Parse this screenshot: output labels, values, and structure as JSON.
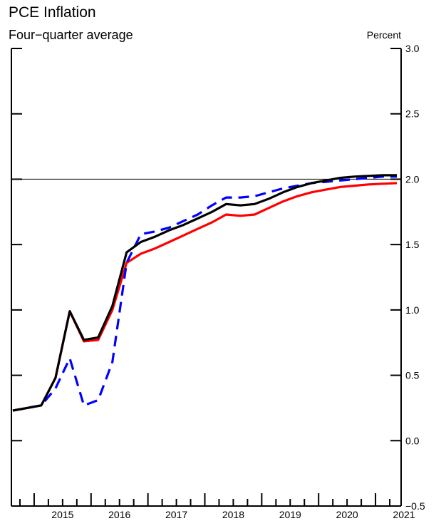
{
  "chart_data": {
    "type": "line",
    "title": "PCE Inflation",
    "subtitle": "Four−quarter average",
    "ylabel": "Percent",
    "xlabel": "",
    "ylim": [
      -0.5,
      3.0
    ],
    "yticks": [
      -0.5,
      0.0,
      0.5,
      1.0,
      1.5,
      2.0,
      2.5,
      3.0
    ],
    "ytick_labels": [
      "−0.5",
      "0.0",
      "0.5",
      "1.0",
      "1.5",
      "2.0",
      "2.5",
      "3.0"
    ],
    "xlim": [
      2014.6,
      2021.45
    ],
    "year_labels": [
      "2015",
      "2016",
      "2017",
      "2018",
      "2019",
      "2020",
      "2021"
    ],
    "reference_line": 2.0,
    "grid": false,
    "series": [
      {
        "color": "#ff0000",
        "dash": "solid",
        "x": [
          2014.625,
          2014.875,
          2015.125,
          2015.375,
          2015.625,
          2015.875,
          2016.125,
          2016.375,
          2016.625,
          2016.875,
          2017.125,
          2017.375,
          2017.625,
          2017.875,
          2018.125,
          2018.375,
          2018.625,
          2018.875,
          2019.125,
          2019.375,
          2019.625,
          2019.875,
          2020.125,
          2020.375,
          2020.625,
          2020.875,
          2021.125,
          2021.375
        ],
        "y": [
          0.23,
          0.25,
          0.27,
          0.48,
          0.99,
          0.76,
          0.77,
          1.0,
          1.36,
          1.43,
          1.47,
          1.52,
          1.57,
          1.62,
          1.67,
          1.73,
          1.72,
          1.73,
          1.78,
          1.83,
          1.87,
          1.9,
          1.92,
          1.94,
          1.95,
          1.96,
          1.965,
          1.97
        ]
      },
      {
        "color": "#0000ff",
        "dash": "dashed",
        "x": [
          2014.625,
          2014.875,
          2015.125,
          2015.375,
          2015.625,
          2015.875,
          2016.125,
          2016.375,
          2016.625,
          2016.875,
          2017.125,
          2017.375,
          2017.625,
          2017.875,
          2018.125,
          2018.375,
          2018.625,
          2018.875,
          2019.125,
          2019.375,
          2019.625,
          2019.875,
          2020.125,
          2020.375,
          2020.625,
          2020.875,
          2021.125,
          2021.375
        ],
        "y": [
          0.23,
          0.25,
          0.27,
          0.4,
          0.63,
          0.27,
          0.31,
          0.6,
          1.36,
          1.58,
          1.6,
          1.63,
          1.68,
          1.73,
          1.8,
          1.86,
          1.86,
          1.87,
          1.9,
          1.93,
          1.95,
          1.97,
          1.98,
          1.99,
          2.0,
          2.01,
          2.02,
          2.02
        ]
      },
      {
        "color": "#000000",
        "dash": "solid",
        "x": [
          2014.625,
          2014.875,
          2015.125,
          2015.375,
          2015.625,
          2015.875,
          2016.125,
          2016.375,
          2016.625,
          2016.875,
          2017.125,
          2017.375,
          2017.625,
          2017.875,
          2018.125,
          2018.375,
          2018.625,
          2018.875,
          2019.125,
          2019.375,
          2019.625,
          2019.875,
          2020.125,
          2020.375,
          2020.625,
          2020.875,
          2021.125,
          2021.375
        ],
        "y": [
          0.23,
          0.25,
          0.27,
          0.48,
          0.99,
          0.77,
          0.79,
          1.03,
          1.44,
          1.52,
          1.56,
          1.61,
          1.65,
          1.7,
          1.75,
          1.81,
          1.8,
          1.81,
          1.85,
          1.9,
          1.94,
          1.97,
          1.99,
          2.01,
          2.02,
          2.025,
          2.03,
          2.03
        ]
      }
    ]
  }
}
